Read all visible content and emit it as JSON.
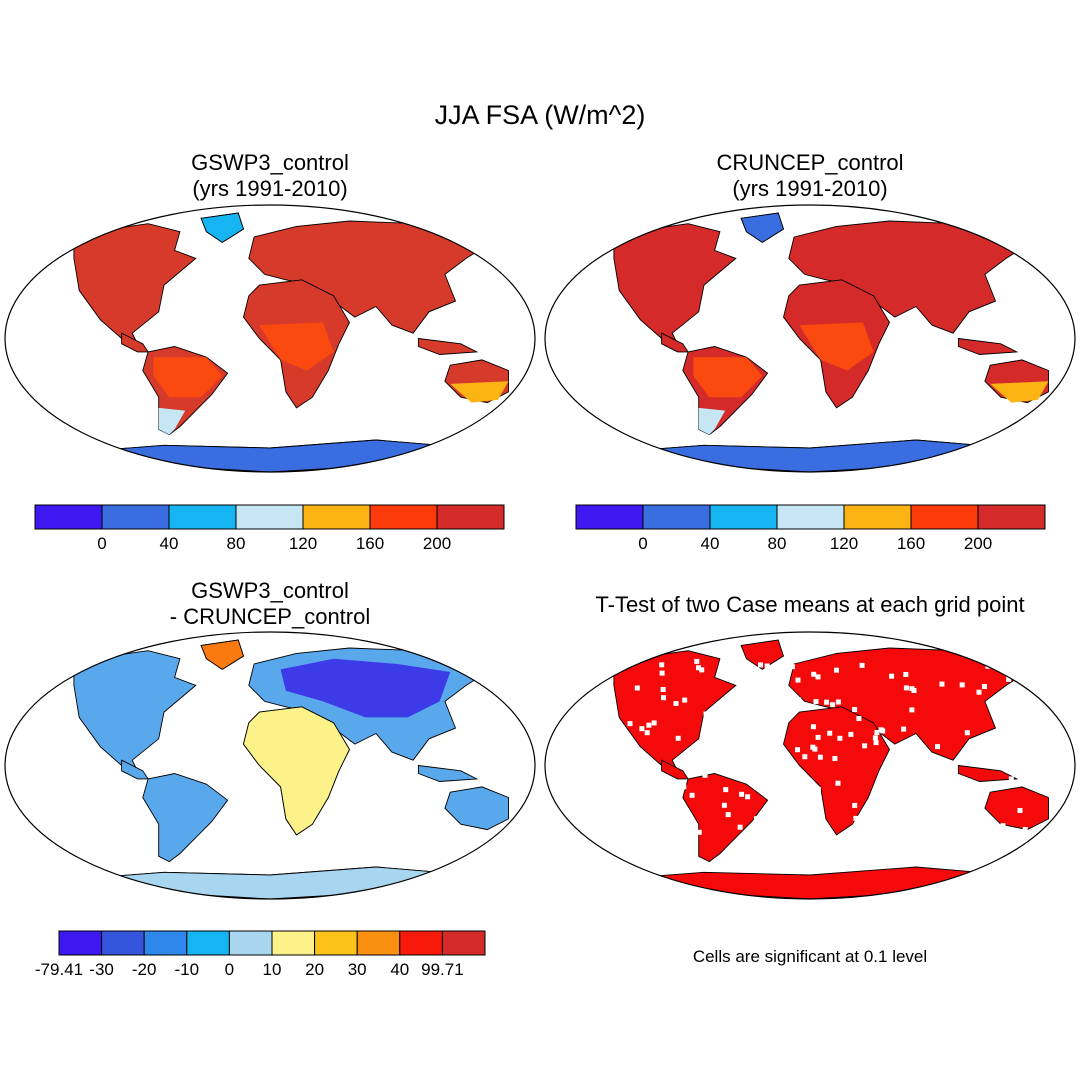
{
  "title": "JJA FSA (W/m^2)",
  "panels": {
    "top_left": {
      "title_line1": "GSWP3_control",
      "title_line2": "(yrs 1991-2010)"
    },
    "top_right": {
      "title_line1": "CRUNCEP_control",
      "title_line2": "(yrs 1991-2010)"
    },
    "bottom_left": {
      "title_line1": "GSWP3_control",
      "title_line2": "- CRUNCEP_control"
    },
    "bottom_right": {
      "title_line1": "T-Test of two Case means at each grid point"
    }
  },
  "colorbars": {
    "absolute": {
      "colors": [
        "#3d18f0",
        "#3a6de0",
        "#16b4f0",
        "#c6e6f4",
        "#fbb414",
        "#fb3a0a",
        "#d42a2a"
      ],
      "labels": [
        "0",
        "40",
        "80",
        "120",
        "160",
        "200"
      ]
    },
    "difference": {
      "colors": [
        "#3d18f0",
        "#3554dc",
        "#2e88ec",
        "#16b4f0",
        "#a8d6f0",
        "#fdf28a",
        "#fbc21a",
        "#fb9010",
        "#f71a0a",
        "#d42a2a"
      ],
      "labels": [
        "-79.41",
        "-30",
        "-20",
        "-10",
        "0",
        "10",
        "20",
        "30",
        "40",
        "99.71"
      ]
    }
  },
  "maps": {
    "top_left": {
      "land": "#d63a2a",
      "regions": {
        "tropics": "#fb4a10",
        "south_tip": "#c6e6f4",
        "greenland": "#16b4f0",
        "antarctica": "#3a6de0",
        "aus_south": "#fbb414"
      }
    },
    "top_right": {
      "land": "#d42a2a",
      "regions": {
        "tropics": "#fb4a10",
        "south_tip": "#c6e6f4",
        "greenland": "#3a6de0",
        "antarctica": "#3a6de0",
        "aus_south": "#fbb414"
      }
    },
    "bottom_left": {
      "land": "#5aa8ec",
      "regions": {
        "eurasia": "#3d3ae8",
        "africa": "#fdf28a",
        "south_america": "#5aa8ec",
        "greenland": "#fb7a10",
        "antarctica": "#a8d6f0"
      }
    },
    "bottom_right": {
      "land": "#f40a0a"
    }
  },
  "note": "Cells are significant at 0.1 level"
}
